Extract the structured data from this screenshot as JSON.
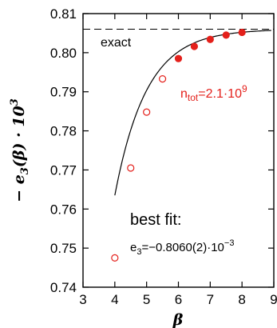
{
  "chart_data": {
    "type": "scatter",
    "xlabel": "β",
    "ylabel_parts": {
      "minus": "−",
      "e": "e",
      "sub": "3",
      "arg": "(β)",
      "dot": " · ",
      "base": "10",
      "exp": "3"
    },
    "xlim": [
      3,
      9
    ],
    "ylim": [
      0.74,
      0.81
    ],
    "xticks": [
      3,
      4,
      5,
      6,
      7,
      8,
      9
    ],
    "yticks": [
      0.74,
      0.75,
      0.76,
      0.77,
      0.78,
      0.79,
      0.8,
      0.81
    ],
    "ytick_labels": [
      "0.74",
      "0.75",
      "0.76",
      "0.77",
      "0.78",
      "0.79",
      "0.80",
      "0.81"
    ],
    "grid": false,
    "exact_value": 0.806,
    "exact_label": "exact",
    "series": [
      {
        "marker": "open-circle",
        "color": "#e4201b",
        "x": [
          4.0,
          4.5,
          5.0,
          5.5
        ],
        "y": [
          0.7475,
          0.7705,
          0.7848,
          0.7933
        ]
      },
      {
        "marker": "filled-circle",
        "color": "#e4201b",
        "x": [
          6.0,
          6.5,
          7.0,
          7.5,
          8.0
        ],
        "y": [
          0.7985,
          0.8016,
          0.8034,
          0.8045,
          0.8052
        ]
      }
    ],
    "fit": {
      "form": "exponential",
      "asymptote": 0.806,
      "amplitude": 0.0425,
      "rate": 1.0,
      "x_range": [
        4.0,
        8.92
      ],
      "color": "#000000"
    },
    "ntot_label": {
      "n": "n",
      "sub": "tot",
      "value": "=2.1·10",
      "exp": "9"
    },
    "fit_label": {
      "line1": "best fit:",
      "e": "e",
      "sub": "3",
      "value": "=−0.8060(2)·10",
      "exp": "−3"
    }
  }
}
